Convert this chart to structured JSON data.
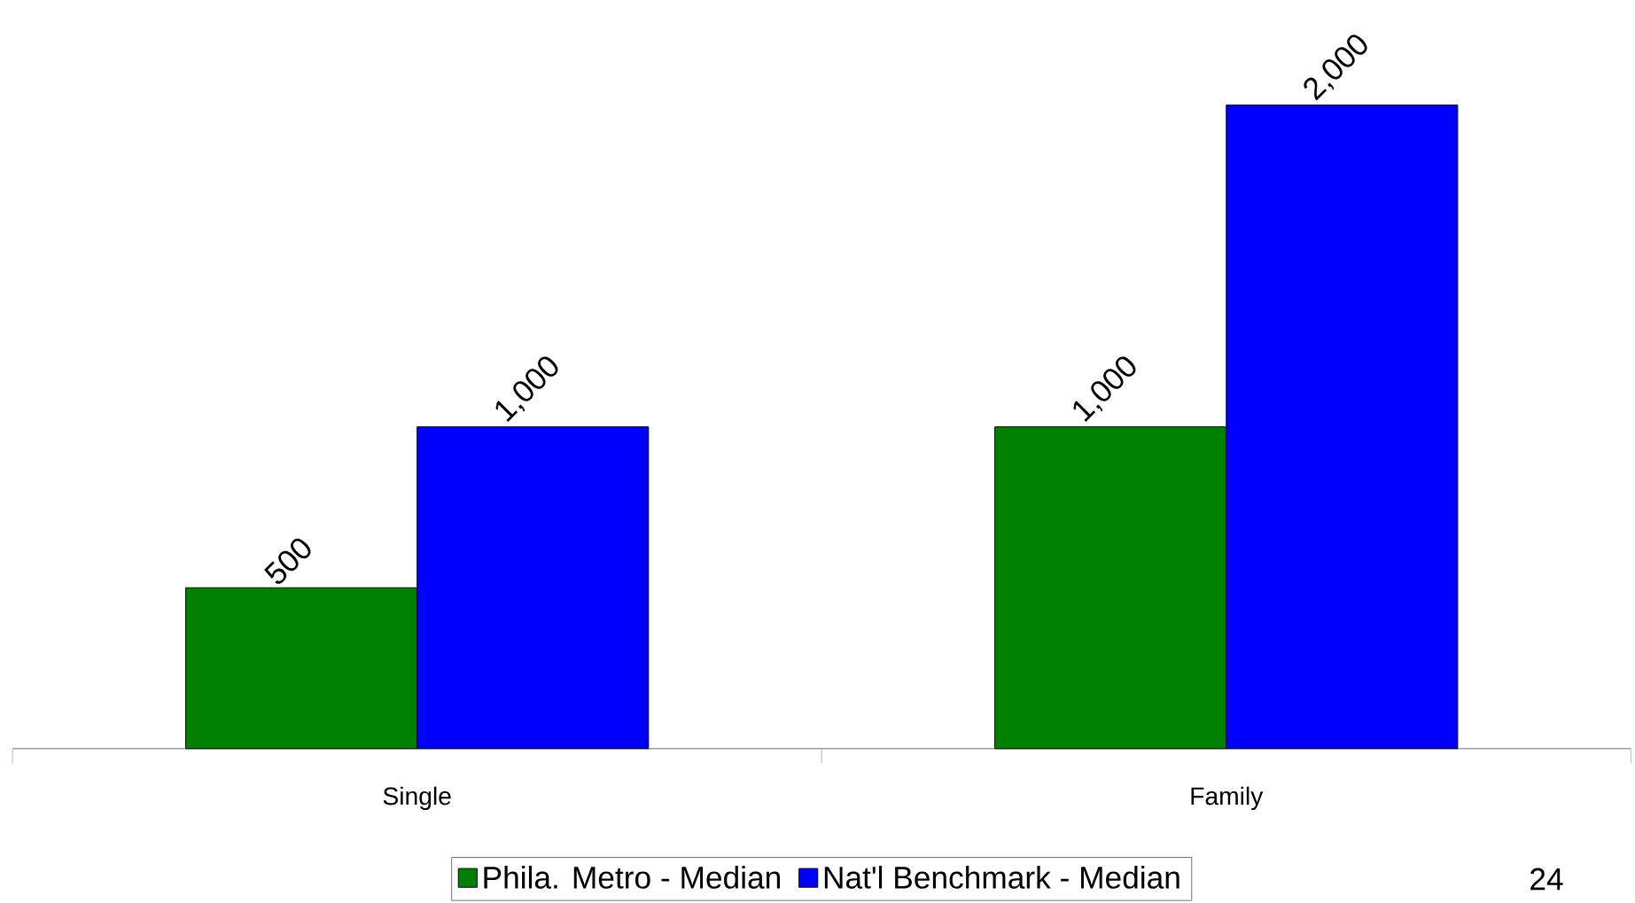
{
  "chart_data": {
    "type": "bar",
    "categories": [
      "Single",
      "Family"
    ],
    "series": [
      {
        "name": "Phila. Metro - Median",
        "color": "#008000",
        "values": [
          500,
          1000
        ],
        "value_labels": [
          "500",
          "1,000"
        ]
      },
      {
        "name": "Nat'l Benchmark - Median",
        "color": "#0000ff",
        "values": [
          1000,
          2000
        ],
        "value_labels": [
          "1,000",
          "2,000"
        ]
      }
    ],
    "legend": "bottom",
    "annotations": [
      "24"
    ]
  }
}
